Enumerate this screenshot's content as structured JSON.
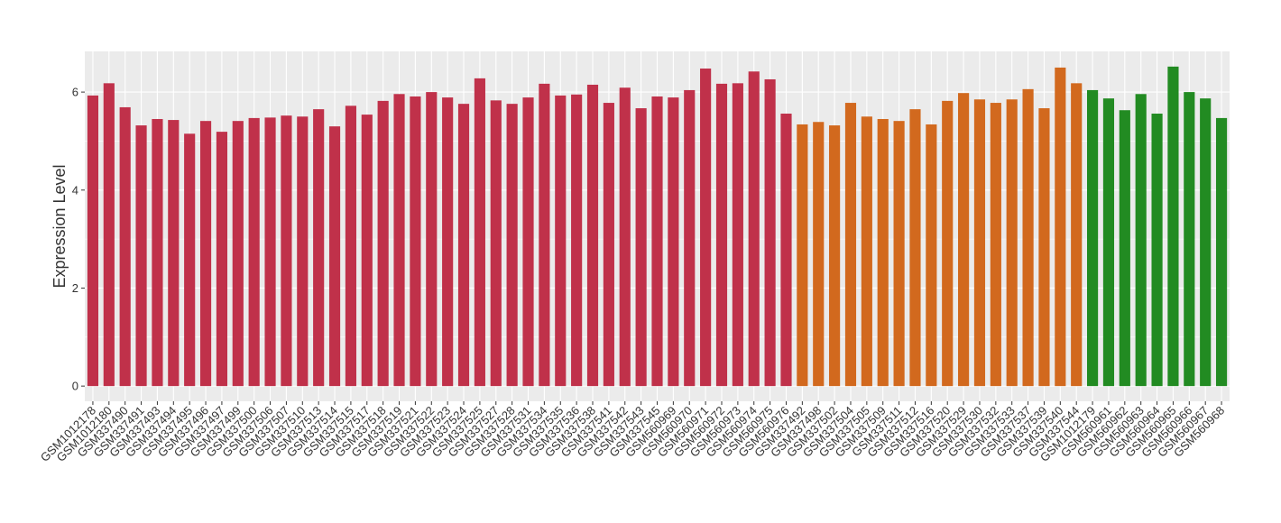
{
  "chart_data": {
    "type": "bar",
    "y_label": "Expression Level",
    "categories": [
      "GSM1012178",
      "GSM1012180",
      "GSM337490",
      "GSM337491",
      "GSM337493",
      "GSM337494",
      "GSM337495",
      "GSM337496",
      "GSM337497",
      "GSM337499",
      "GSM337500",
      "GSM337506",
      "GSM337507",
      "GSM337510",
      "GSM337513",
      "GSM337514",
      "GSM337515",
      "GSM337517",
      "GSM337518",
      "GSM337519",
      "GSM337521",
      "GSM337522",
      "GSM337523",
      "GSM337524",
      "GSM337525",
      "GSM337527",
      "GSM337528",
      "GSM337531",
      "GSM337534",
      "GSM337535",
      "GSM337536",
      "GSM337538",
      "GSM337541",
      "GSM337542",
      "GSM337543",
      "GSM337545",
      "GSM560969",
      "GSM560970",
      "GSM560971",
      "GSM560972",
      "GSM560973",
      "GSM560974",
      "GSM560975",
      "GSM560976",
      "GSM337492",
      "GSM337498",
      "GSM337502",
      "GSM337504",
      "GSM337505",
      "GSM337509",
      "GSM337511",
      "GSM337512",
      "GSM337516",
      "GSM337520",
      "GSM337529",
      "GSM337530",
      "GSM337532",
      "GSM337533",
      "GSM337537",
      "GSM337539",
      "GSM337540",
      "GSM337544",
      "GSM1012179",
      "GSM560961",
      "GSM560962",
      "GSM560963",
      "GSM560964",
      "GSM560965",
      "GSM560966",
      "GSM560967",
      "GSM560968"
    ],
    "values": [
      5.93,
      6.18,
      5.69,
      5.32,
      5.45,
      5.43,
      5.15,
      5.41,
      5.19,
      5.41,
      5.47,
      5.48,
      5.52,
      5.5,
      5.65,
      5.3,
      5.72,
      5.54,
      5.82,
      5.96,
      5.91,
      6.0,
      5.89,
      5.76,
      6.28,
      5.83,
      5.76,
      5.89,
      6.17,
      5.93,
      5.95,
      6.15,
      5.78,
      6.09,
      5.67,
      5.91,
      5.89,
      6.04,
      6.48,
      6.17,
      6.18,
      6.42,
      6.26,
      5.56,
      5.34,
      5.39,
      5.32,
      5.78,
      5.5,
      5.45,
      5.41,
      5.65,
      5.34,
      5.82,
      5.98,
      5.85,
      5.78,
      5.85,
      6.06,
      5.67,
      6.5,
      6.18,
      6.04,
      5.87,
      5.63,
      5.96,
      5.56,
      6.52,
      6.0,
      5.87,
      5.47
    ],
    "colors": [
      "#c0314a",
      "#c0314a",
      "#c0314a",
      "#c0314a",
      "#c0314a",
      "#c0314a",
      "#c0314a",
      "#c0314a",
      "#c0314a",
      "#c0314a",
      "#c0314a",
      "#c0314a",
      "#c0314a",
      "#c0314a",
      "#c0314a",
      "#c0314a",
      "#c0314a",
      "#c0314a",
      "#c0314a",
      "#c0314a",
      "#c0314a",
      "#c0314a",
      "#c0314a",
      "#c0314a",
      "#c0314a",
      "#c0314a",
      "#c0314a",
      "#c0314a",
      "#c0314a",
      "#c0314a",
      "#c0314a",
      "#c0314a",
      "#c0314a",
      "#c0314a",
      "#c0314a",
      "#c0314a",
      "#c0314a",
      "#c0314a",
      "#c0314a",
      "#c0314a",
      "#c0314a",
      "#c0314a",
      "#c0314a",
      "#c0314a",
      "#d2691e",
      "#d2691e",
      "#d2691e",
      "#d2691e",
      "#d2691e",
      "#d2691e",
      "#d2691e",
      "#d2691e",
      "#d2691e",
      "#d2691e",
      "#d2691e",
      "#d2691e",
      "#d2691e",
      "#d2691e",
      "#d2691e",
      "#d2691e",
      "#d2691e",
      "#d2691e",
      "#228b22",
      "#228b22",
      "#228b22",
      "#228b22",
      "#228b22",
      "#228b22",
      "#228b22",
      "#228b22",
      "#228b22"
    ],
    "ylim": [
      -0.31,
      6.83
    ],
    "yticks": [
      0,
      2,
      4,
      6
    ],
    "grid": true
  }
}
